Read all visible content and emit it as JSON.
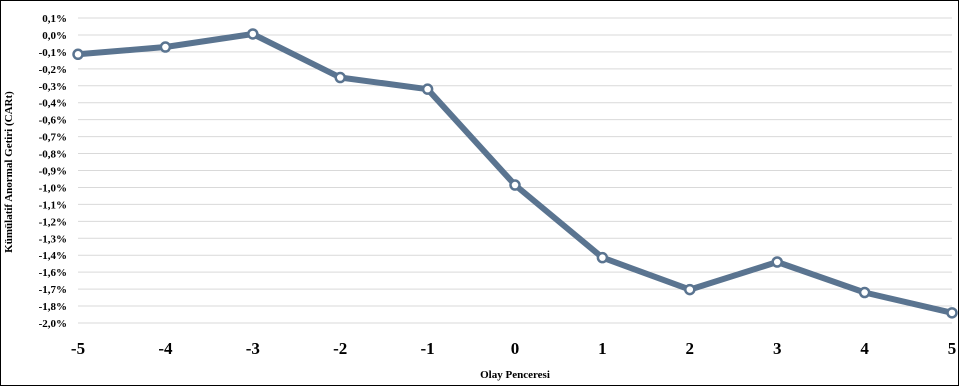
{
  "chart_data": {
    "type": "line",
    "xlabel": "Olay Penceresi",
    "ylabel": "Kümülatif Anormal Getiri (CARt)",
    "x_ticks": [
      "-5",
      "-4",
      "-3",
      "-2",
      "-1",
      "0",
      "1",
      "2",
      "3",
      "4",
      "5"
    ],
    "y_ticks": [
      "0,1%",
      "0,0%",
      "-0,1%",
      "-0,2%",
      "-0,3%",
      "-0,4%",
      "-0,6%",
      "-0,7%",
      "-0,8%",
      "-0,9%",
      "-1,0%",
      "-1,1%",
      "-1,2%",
      "-1,3%",
      "-1,4%",
      "-1,6%",
      "-1,7%",
      "-1,8%",
      "-2,0%"
    ],
    "ylim": [
      -2.0,
      0.1
    ],
    "xlim": [
      -5,
      5
    ],
    "grid": true,
    "line_color": "#5a7490",
    "series": [
      {
        "x": [
          -5,
          -4,
          -3,
          -2,
          -1,
          0,
          1,
          2,
          3,
          4,
          5
        ],
        "values": [
          -0.15,
          -0.1,
          -0.01,
          -0.31,
          -0.39,
          -1.05,
          -1.55,
          -1.77,
          -1.58,
          -1.79,
          -1.93
        ]
      }
    ]
  }
}
